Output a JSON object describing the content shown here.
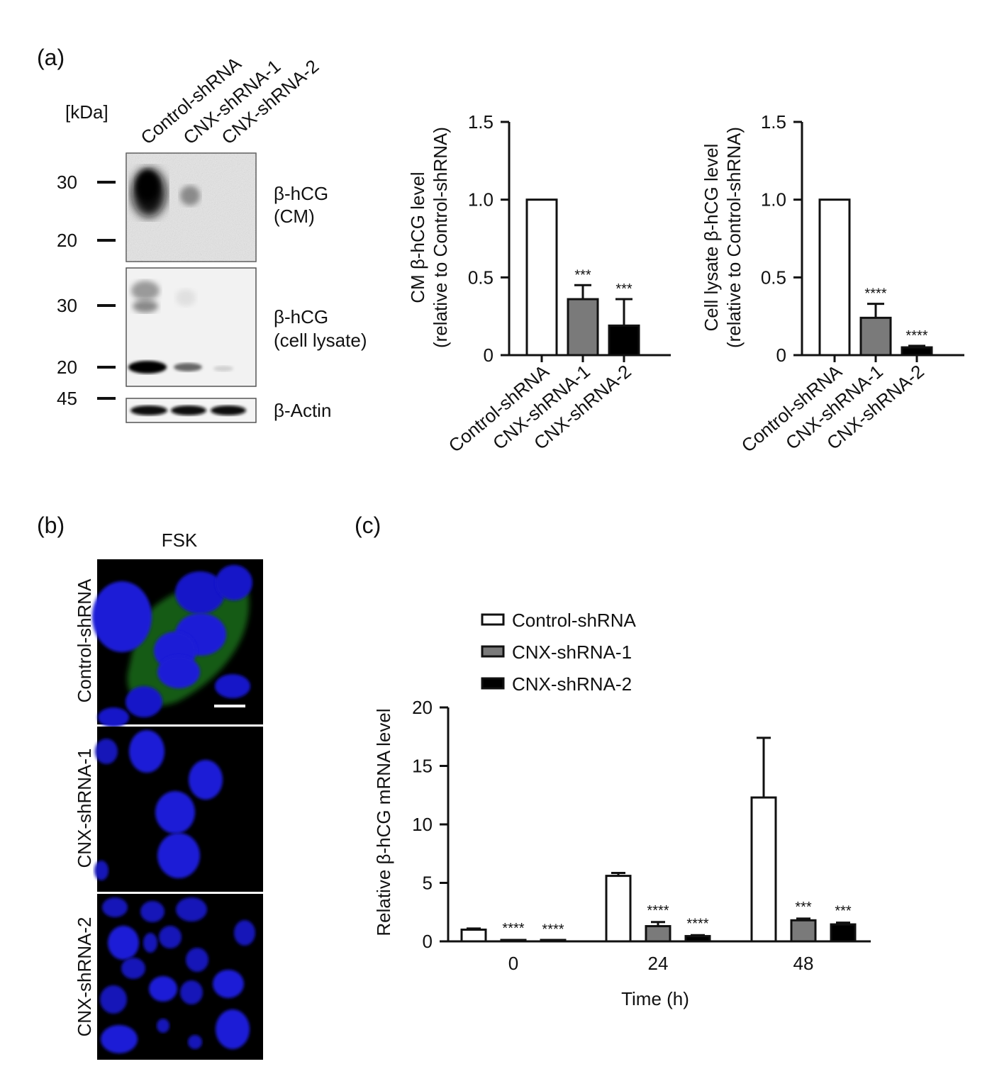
{
  "panel_labels": {
    "a": "(a)",
    "b": "(b)",
    "c": "(c)"
  },
  "blot": {
    "kda_label": "[kDa]",
    "lanes": [
      "Control-shRNA",
      "CNX-shRNA-1",
      "CNX-shRNA-2"
    ],
    "markers": [
      "30",
      "20",
      "30",
      "20",
      "45"
    ],
    "band_labels": {
      "cm_line1": "β-hCG",
      "cm_line2": "(CM)",
      "lysate_line1": "β-hCG",
      "lysate_line2": "(cell lysate)",
      "actin": "β-Actin"
    }
  },
  "microscopy": {
    "header": "FSK",
    "rows": [
      "Control-shRNA",
      "CNX-shRNA-1",
      "CNX-shRNA-2"
    ]
  },
  "chart_data": [
    {
      "type": "bar",
      "ylabel_line1": "CM β-hCG level",
      "ylabel_line2": "(relative to Control-shRNA)",
      "categories": [
        "Control-shRNA",
        "CNX-shRNA-1",
        "CNX-shRNA-2"
      ],
      "values": [
        1.0,
        0.36,
        0.19
      ],
      "errors": [
        0,
        0.09,
        0.17
      ],
      "significance": [
        "",
        "***",
        "***"
      ],
      "colors": [
        "#ffffff",
        "#7a7a7a",
        "#000000"
      ],
      "ylim": [
        0,
        1.5
      ],
      "yticks": [
        "0",
        "0.5",
        "1.0",
        "1.5"
      ]
    },
    {
      "type": "bar",
      "ylabel_line1": "Cell lysate β-hCG level",
      "ylabel_line2": "(relative to Control-shRNA)",
      "categories": [
        "Control-shRNA",
        "CNX-shRNA-1",
        "CNX-shRNA-2"
      ],
      "values": [
        1.0,
        0.24,
        0.05
      ],
      "errors": [
        0,
        0.09,
        0.01
      ],
      "significance": [
        "",
        "****",
        "****"
      ],
      "colors": [
        "#ffffff",
        "#7a7a7a",
        "#000000"
      ],
      "ylim": [
        0,
        1.5
      ],
      "yticks": [
        "0",
        "0.5",
        "1.0",
        "1.5"
      ]
    },
    {
      "type": "bar",
      "ylabel": "Relative β-hCG mRNA level",
      "xlabel": "Time (h)",
      "categories": [
        "0",
        "24",
        "48"
      ],
      "series": [
        {
          "name": "Control-shRNA",
          "color": "#ffffff",
          "values": [
            1.0,
            5.6,
            12.3
          ],
          "errors": [
            0.1,
            0.25,
            5.1
          ],
          "significance": [
            "",
            "",
            ""
          ]
        },
        {
          "name": "CNX-shRNA-1",
          "color": "#7a7a7a",
          "values": [
            0.1,
            1.3,
            1.8
          ],
          "errors": [
            0.02,
            0.35,
            0.15
          ],
          "significance": [
            "****",
            "****",
            "***"
          ]
        },
        {
          "name": "CNX-shRNA-2",
          "color": "#000000",
          "values": [
            0.03,
            0.45,
            1.45
          ],
          "errors": [
            0.01,
            0.08,
            0.15
          ],
          "significance": [
            "****",
            "****",
            "***"
          ]
        }
      ],
      "ylim": [
        0,
        20
      ],
      "yticks": [
        "0",
        "5",
        "10",
        "15",
        "20"
      ],
      "legend_position": "top-left"
    }
  ]
}
